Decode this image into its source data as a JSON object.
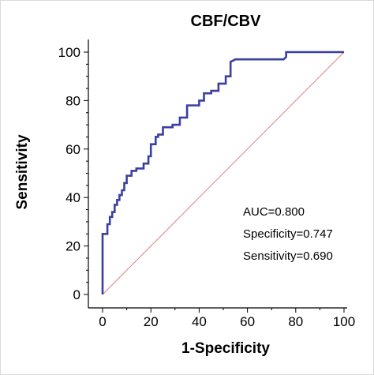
{
  "chart_data": {
    "type": "line",
    "title": "CBF/CBV",
    "xlabel": "1-Specificity",
    "ylabel": "Sensitivity",
    "xlim": [
      0,
      100
    ],
    "ylim": [
      0,
      100
    ],
    "x_ticks": [
      "0",
      "20",
      "40",
      "60",
      "80",
      "100"
    ],
    "y_ticks": [
      "0",
      "20",
      "40",
      "60",
      "80",
      "100"
    ],
    "colors": {
      "roc": "#3b3fa0",
      "reference": "#e08080",
      "axis": "#000000"
    },
    "series": [
      {
        "x": [
          0,
          0,
          0,
          0,
          2,
          2,
          3,
          3,
          4,
          4,
          5,
          5,
          6,
          6,
          7,
          7,
          8,
          8,
          9,
          9,
          10,
          10,
          12,
          12,
          14,
          14,
          17,
          17,
          19,
          19,
          20,
          20,
          22,
          22,
          23,
          23,
          25,
          25,
          29,
          29,
          32,
          32,
          35,
          35,
          40,
          40,
          42,
          42,
          45,
          45,
          48,
          48,
          51,
          51,
          53,
          53,
          55,
          75,
          76,
          76,
          80,
          100
        ],
        "y": [
          0,
          20,
          20,
          25,
          25,
          29,
          29,
          32,
          32,
          34,
          34,
          37,
          37,
          39,
          39,
          41,
          41,
          43,
          43,
          46,
          46,
          49,
          49,
          51,
          51,
          52,
          52,
          54,
          54,
          57,
          57,
          62,
          62,
          65,
          65,
          66,
          66,
          69,
          69,
          70,
          70,
          73,
          73,
          78,
          78,
          80,
          80,
          83,
          83,
          84,
          84,
          87,
          87,
          90,
          90,
          96,
          97,
          97,
          98,
          100,
          100,
          100
        ]
      },
      {
        "x": [
          0,
          100
        ],
        "y": [
          0,
          100
        ]
      }
    ],
    "annotations": [
      "AUC=0.800",
      "Specificity=0.747",
      "Sensitivity=0.690"
    ]
  }
}
